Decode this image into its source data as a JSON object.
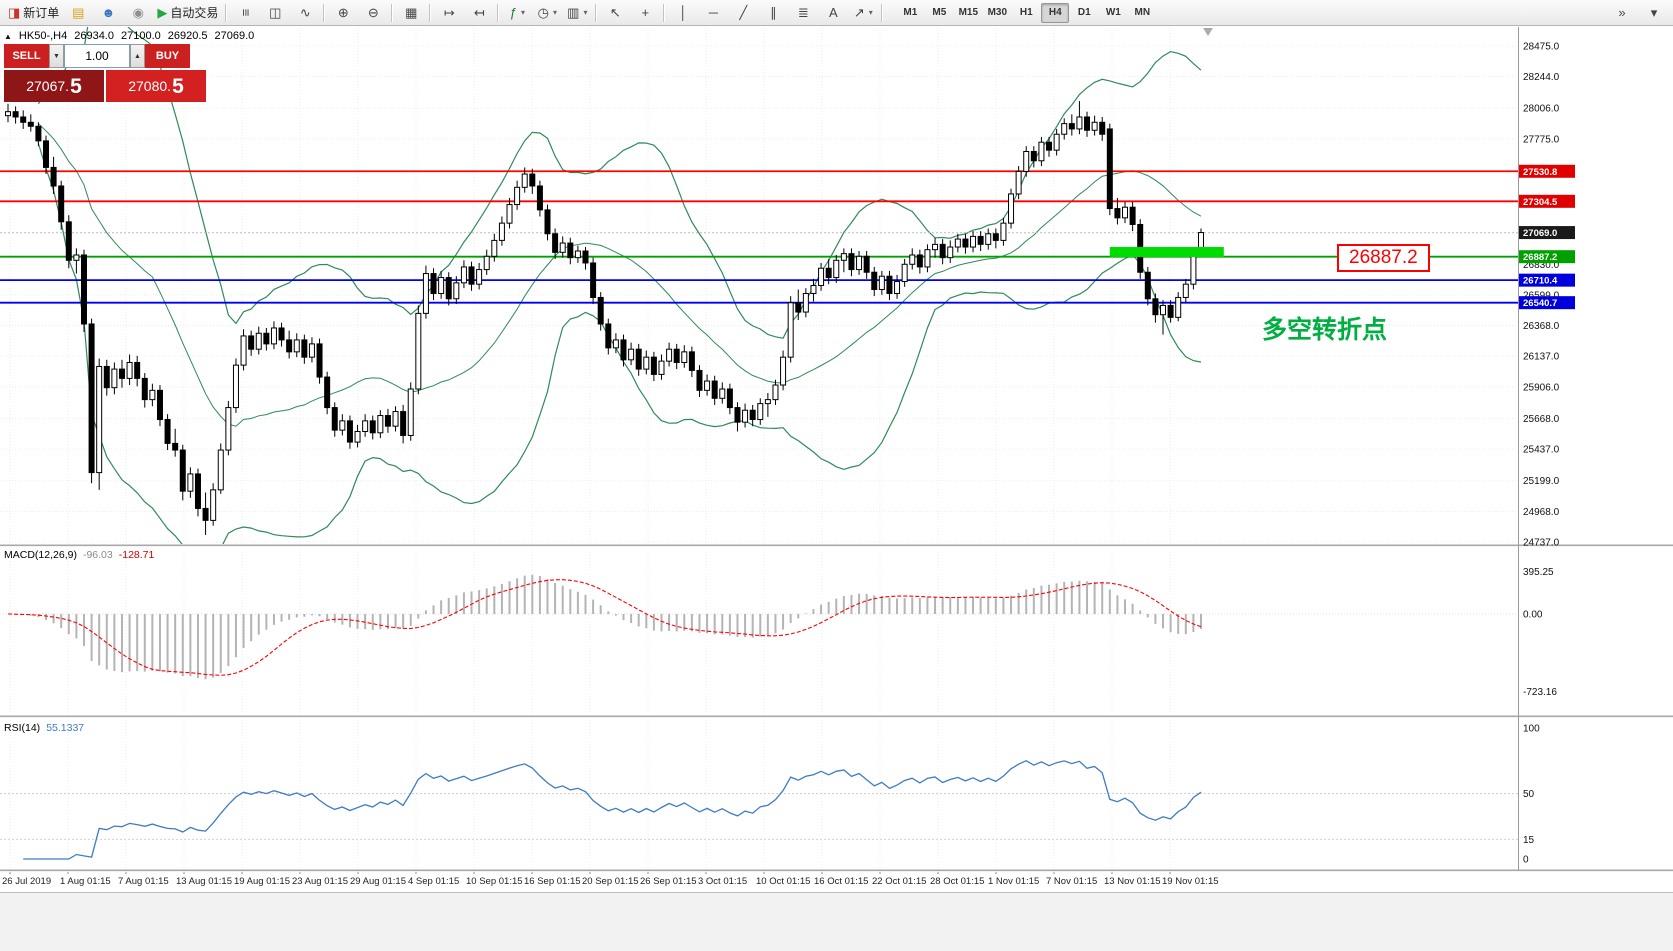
{
  "toolbar": {
    "items": [
      {
        "name": "new-order-button",
        "glyph": "◨",
        "color": "#c0392b",
        "label": "新订单"
      },
      {
        "name": "charts-profile-button",
        "glyph": "▤",
        "color": "#d9a21b"
      },
      {
        "name": "community-button",
        "glyph": "☻",
        "color": "#3b76c4"
      },
      {
        "name": "mql5-button",
        "glyph": "◉",
        "color": "#8f8f8f"
      },
      {
        "name": "autotrading-button",
        "glyph": "▶",
        "color": "#22a842",
        "label": "自动交易"
      },
      {
        "sep": true
      },
      {
        "name": "bars-button",
        "glyph": "≡",
        "rotate": true
      },
      {
        "name": "candles-button",
        "glyph": "◫"
      },
      {
        "name": "line-chart-button",
        "glyph": "∿"
      },
      {
        "sep": true
      },
      {
        "name": "zoom-in-button",
        "glyph": "⊕"
      },
      {
        "name": "zoom-out-button",
        "glyph": "⊖"
      },
      {
        "sep": true
      },
      {
        "name": "tile-windows-button",
        "glyph": "▦"
      },
      {
        "sep": true
      },
      {
        "name": "auto-scroll-button",
        "glyph": "↦"
      },
      {
        "name": "chart-shift-button",
        "glyph": "↤"
      },
      {
        "sep": true
      },
      {
        "name": "indicators-button",
        "glyph": "ƒ",
        "color": "#1a7f37",
        "caret": true
      },
      {
        "name": "periods-button",
        "glyph": "◷",
        "caret": true
      },
      {
        "name": "templates-button",
        "glyph": "▥",
        "caret": true
      },
      {
        "sep": true
      },
      {
        "name": "cursor-button",
        "glyph": "↖"
      },
      {
        "name": "crosshair-button",
        "glyph": "+"
      },
      {
        "sep": true
      },
      {
        "name": "vline-button",
        "glyph": "│"
      },
      {
        "name": "hline-button",
        "glyph": "─"
      },
      {
        "name": "trendline-button",
        "glyph": "╱"
      },
      {
        "name": "channel-button",
        "glyph": "∥"
      },
      {
        "name": "fibonacci-button",
        "glyph": "≣"
      },
      {
        "name": "text-button",
        "glyph": "A"
      },
      {
        "name": "arrows-button",
        "glyph": "↗",
        "caret": true
      },
      {
        "sep": true
      }
    ],
    "timeframes": [
      "M1",
      "M5",
      "M15",
      "M30",
      "H1",
      "H4",
      "D1",
      "W1",
      "MN"
    ],
    "active_timeframe": "H4",
    "right_buttons": [
      {
        "name": "toolbar-overflow-button",
        "glyph": "»"
      },
      {
        "name": "toolbar-options-button",
        "glyph": "▾"
      }
    ]
  },
  "trade_panel": {
    "sell_label": "SELL",
    "buy_label": "BUY",
    "volume": "1.00",
    "spin_down_icon": "▼",
    "spin_up_icon": "▲",
    "sell_price_main": "27067.",
    "sell_price_big": "5",
    "buy_price_main": "27080.",
    "buy_price_big": "5"
  },
  "chart_header": {
    "expand_icon": "▲",
    "symbol_period": "HK50-,H4",
    "open": "26934.0",
    "high": "27100.0",
    "low": "26920.5",
    "close": "27069.0"
  },
  "annotations": {
    "resistance_callout": "26887.2",
    "callout_color": "#FF0000",
    "note_text": "多空转折点",
    "note_color": "#00AE42"
  },
  "price_axis": {
    "plain_labels": [
      "28475.0",
      "28244.0",
      "28006.0",
      "27775.0",
      "26830.0",
      "26599.0",
      "26368.0",
      "26137.0",
      "25906.0",
      "25668.0",
      "25437.0",
      "25199.0",
      "24968.0",
      "24737.0"
    ],
    "tags": [
      {
        "value": 27530.8,
        "text": "27530.8",
        "color": "#E00000"
      },
      {
        "value": 27304.5,
        "text": "27304.5",
        "color": "#E00000"
      },
      {
        "value": 27069.0,
        "text": "27069.0",
        "color": "#1a1a1a"
      },
      {
        "value": 26887.2,
        "text": "26887.2",
        "color": "#00A000"
      },
      {
        "value": 26710.4,
        "text": "26710.4",
        "color": "#0000DD"
      },
      {
        "value": 26540.7,
        "text": "26540.7",
        "color": "#0000DD"
      }
    ]
  },
  "macd_pane": {
    "label": "MACD(12,26,9)",
    "value": "-96.03",
    "signal_value": "-128.71",
    "axis_labels": [
      "395.25",
      "0.00",
      "-723.16"
    ],
    "axis_values": [
      395.25,
      0,
      -723.16
    ]
  },
  "rsi_pane": {
    "label": "RSI(14)",
    "value": "55.1337",
    "axis_labels": [
      "100",
      "50",
      "15",
      "0"
    ],
    "axis_values": [
      100,
      50,
      15,
      0
    ]
  },
  "time_axis": {
    "labels": [
      "26 Jul 2019",
      "1 Aug 01:15",
      "7 Aug 01:15",
      "13 Aug 01:15",
      "19 Aug 01:15",
      "23 Aug 01:15",
      "29 Aug 01:15",
      "4 Sep 01:15",
      "10 Sep 01:15",
      "16 Sep 01:15",
      "20 Sep 01:15",
      "26 Sep 01:15",
      "3 Oct 01:15",
      "10 Oct 01:15",
      "16 Oct 01:15",
      "22 Oct 01:15",
      "28 Oct 01:15",
      "1 Nov 01:15",
      "7 Nov 01:15",
      "13 Nov 01:15",
      "19 Nov 01:15"
    ]
  },
  "chart_data": {
    "type": "candlestick",
    "title": "HK50-,H4",
    "y_range": [
      24737.0,
      28475.0
    ],
    "current_price": 27069.0,
    "bid": 27067.5,
    "ask": 27080.5,
    "horizontal_lines": [
      {
        "price": 27530.8,
        "color": "#FF0000"
      },
      {
        "price": 27304.5,
        "color": "#FF0000"
      },
      {
        "price": 26887.2,
        "color": "#00A000"
      },
      {
        "price": 26710.4,
        "color": "#0000EE"
      },
      {
        "price": 26540.7,
        "color": "#0000EE"
      }
    ],
    "highlight_rect": {
      "bar_start": 145,
      "bar_end": 160,
      "price_top": 26960,
      "price_bottom": 26885,
      "color": "#00DC00"
    },
    "indicators": {
      "bollinger": {
        "period": 20,
        "deviation": 2,
        "color": "#2E8B57"
      },
      "macd": {
        "fast": 12,
        "slow": 26,
        "signal": 9,
        "value": -96.03,
        "signal_value": -128.71,
        "histogram_color": "#b4b4b4",
        "signal_color": "#FF0000",
        "scale_labels": [
          395.25,
          0.0,
          -723.16
        ]
      },
      "rsi": {
        "period": 14,
        "value": 55.1337,
        "color": "#3E7BC4",
        "scale_labels": [
          100,
          50,
          15,
          0
        ]
      }
    },
    "x_labels": [
      "26 Jul 2019",
      "1 Aug 01:15",
      "7 Aug 01:15",
      "13 Aug 01:15",
      "19 Aug 01:15",
      "23 Aug 01:15",
      "29 Aug 01:15",
      "4 Sep 01:15",
      "10 Sep 01:15",
      "16 Sep 01:15",
      "20 Sep 01:15",
      "26 Sep 01:15",
      "3 Oct 01:15",
      "10 Oct 01:15",
      "16 Oct 01:15",
      "22 Oct 01:15",
      "28 Oct 01:15",
      "1 Nov 01:15",
      "7 Nov 01:15",
      "13 Nov 01:15",
      "19 Nov 01:15"
    ],
    "candles_ohlc": [
      [
        27950,
        28040,
        27900,
        27980
      ],
      [
        27980,
        28020,
        27890,
        27940
      ],
      [
        27940,
        27990,
        27850,
        27900
      ],
      [
        27900,
        27960,
        27830,
        27870
      ],
      [
        27870,
        27900,
        27720,
        27760
      ],
      [
        27760,
        27800,
        27510,
        27560
      ],
      [
        27560,
        27640,
        27360,
        27420
      ],
      [
        27420,
        27460,
        27090,
        27150
      ],
      [
        27150,
        27200,
        26800,
        26860
      ],
      [
        26860,
        26950,
        26760,
        26900
      ],
      [
        26900,
        26940,
        26320,
        26380
      ],
      [
        26380,
        26420,
        25180,
        25260
      ],
      [
        25260,
        26120,
        25130,
        26060
      ],
      [
        26060,
        26110,
        25840,
        25900
      ],
      [
        25900,
        26090,
        25850,
        26040
      ],
      [
        26040,
        26110,
        25900,
        25970
      ],
      [
        25970,
        26150,
        25920,
        26090
      ],
      [
        26090,
        26140,
        25910,
        25970
      ],
      [
        25970,
        26010,
        25750,
        25810
      ],
      [
        25810,
        25930,
        25760,
        25880
      ],
      [
        25880,
        25920,
        25610,
        25660
      ],
      [
        25660,
        25700,
        25430,
        25480
      ],
      [
        25480,
        25590,
        25380,
        25430
      ],
      [
        25430,
        25470,
        25050,
        25120
      ],
      [
        25120,
        25300,
        25070,
        25250
      ],
      [
        25250,
        25290,
        24930,
        24990
      ],
      [
        24990,
        25110,
        24790,
        24900
      ],
      [
        24900,
        25180,
        24860,
        25130
      ],
      [
        25130,
        25480,
        25100,
        25430
      ],
      [
        25430,
        25800,
        25390,
        25750
      ],
      [
        25750,
        26120,
        25710,
        26070
      ],
      [
        26070,
        26340,
        26030,
        26290
      ],
      [
        26290,
        26330,
        26140,
        26190
      ],
      [
        26190,
        26360,
        26150,
        26310
      ],
      [
        26310,
        26350,
        26180,
        26230
      ],
      [
        26230,
        26400,
        26190,
        26350
      ],
      [
        26350,
        26390,
        26210,
        26260
      ],
      [
        26260,
        26330,
        26120,
        26170
      ],
      [
        26170,
        26310,
        26130,
        26260
      ],
      [
        26260,
        26300,
        26080,
        26130
      ],
      [
        26130,
        26280,
        26090,
        26230
      ],
      [
        26230,
        26270,
        25930,
        25980
      ],
      [
        25980,
        26020,
        25700,
        25750
      ],
      [
        25750,
        25790,
        25530,
        25580
      ],
      [
        25580,
        25700,
        25540,
        25650
      ],
      [
        25650,
        25690,
        25440,
        25490
      ],
      [
        25490,
        25620,
        25450,
        25570
      ],
      [
        25570,
        25700,
        25530,
        25650
      ],
      [
        25650,
        25690,
        25510,
        25560
      ],
      [
        25560,
        25730,
        25520,
        25690
      ],
      [
        25690,
        25740,
        25560,
        25610
      ],
      [
        25610,
        25760,
        25570,
        25720
      ],
      [
        25720,
        25770,
        25480,
        25540
      ],
      [
        25540,
        25940,
        25500,
        25890
      ],
      [
        25890,
        26520,
        25850,
        26460
      ],
      [
        26460,
        26820,
        26420,
        26760
      ],
      [
        26760,
        26800,
        26560,
        26610
      ],
      [
        26610,
        26780,
        26570,
        26730
      ],
      [
        26730,
        26770,
        26520,
        26570
      ],
      [
        26570,
        26740,
        26530,
        26690
      ],
      [
        26690,
        26860,
        26650,
        26810
      ],
      [
        26810,
        26850,
        26630,
        26680
      ],
      [
        26680,
        26840,
        26640,
        26790
      ],
      [
        26790,
        26940,
        26750,
        26890
      ],
      [
        26890,
        27060,
        26850,
        27010
      ],
      [
        27010,
        27190,
        26970,
        27140
      ],
      [
        27140,
        27330,
        27100,
        27280
      ],
      [
        27280,
        27460,
        27240,
        27410
      ],
      [
        27410,
        27560,
        27370,
        27510
      ],
      [
        27510,
        27550,
        27360,
        27420
      ],
      [
        27420,
        27460,
        27190,
        27240
      ],
      [
        27240,
        27280,
        27010,
        27060
      ],
      [
        27060,
        27100,
        26870,
        26920
      ],
      [
        26920,
        27040,
        26880,
        26990
      ],
      [
        26990,
        27030,
        26830,
        26880
      ],
      [
        26880,
        26970,
        26840,
        26930
      ],
      [
        26930,
        26960,
        26790,
        26840
      ],
      [
        26840,
        26880,
        26530,
        26580
      ],
      [
        26580,
        26620,
        26330,
        26380
      ],
      [
        26380,
        26420,
        26150,
        26200
      ],
      [
        26200,
        26310,
        26160,
        26260
      ],
      [
        26260,
        26300,
        26060,
        26110
      ],
      [
        26110,
        26240,
        26070,
        26190
      ],
      [
        26190,
        26230,
        25990,
        26040
      ],
      [
        26040,
        26180,
        26000,
        26130
      ],
      [
        26130,
        26170,
        25950,
        26000
      ],
      [
        26000,
        26150,
        25960,
        26100
      ],
      [
        26100,
        26240,
        26060,
        26190
      ],
      [
        26190,
        26230,
        26040,
        26090
      ],
      [
        26090,
        26220,
        26050,
        26170
      ],
      [
        26170,
        26210,
        25980,
        26030
      ],
      [
        26030,
        26070,
        25830,
        25880
      ],
      [
        25880,
        26000,
        25840,
        25950
      ],
      [
        25950,
        25990,
        25770,
        25820
      ],
      [
        25820,
        25940,
        25780,
        25890
      ],
      [
        25890,
        25930,
        25700,
        25750
      ],
      [
        25750,
        25790,
        25570,
        25640
      ],
      [
        25640,
        25780,
        25600,
        25730
      ],
      [
        25730,
        25770,
        25610,
        25660
      ],
      [
        25660,
        25820,
        25620,
        25780
      ],
      [
        25780,
        25860,
        25680,
        25810
      ],
      [
        25810,
        25960,
        25770,
        25920
      ],
      [
        25920,
        26180,
        25880,
        26130
      ],
      [
        26130,
        26590,
        26090,
        26540
      ],
      [
        26540,
        26640,
        26410,
        26470
      ],
      [
        26470,
        26650,
        26430,
        26610
      ],
      [
        26610,
        26720,
        26550,
        26670
      ],
      [
        26670,
        26840,
        26630,
        26800
      ],
      [
        26800,
        26870,
        26680,
        26730
      ],
      [
        26730,
        26900,
        26690,
        26860
      ],
      [
        26860,
        26950,
        26770,
        26910
      ],
      [
        26910,
        26950,
        26740,
        26790
      ],
      [
        26790,
        26930,
        26750,
        26890
      ],
      [
        26890,
        26930,
        26720,
        26770
      ],
      [
        26770,
        26810,
        26590,
        26640
      ],
      [
        26640,
        26780,
        26600,
        26740
      ],
      [
        26740,
        26780,
        26560,
        26610
      ],
      [
        26610,
        26750,
        26570,
        26700
      ],
      [
        26700,
        26870,
        26660,
        26830
      ],
      [
        26830,
        26950,
        26790,
        26900
      ],
      [
        26900,
        26940,
        26760,
        26810
      ],
      [
        26810,
        26980,
        26770,
        26940
      ],
      [
        26940,
        27030,
        26880,
        26980
      ],
      [
        26980,
        27020,
        26830,
        26880
      ],
      [
        26880,
        27010,
        26840,
        26960
      ],
      [
        26960,
        27060,
        26920,
        27020
      ],
      [
        27020,
        27060,
        26910,
        26960
      ],
      [
        26960,
        27080,
        26920,
        27040
      ],
      [
        27040,
        27080,
        26930,
        26980
      ],
      [
        26980,
        27100,
        26940,
        27060
      ],
      [
        27060,
        27100,
        26950,
        27010
      ],
      [
        27010,
        27180,
        26970,
        27140
      ],
      [
        27140,
        27400,
        27100,
        27360
      ],
      [
        27360,
        27570,
        27320,
        27530
      ],
      [
        27530,
        27720,
        27490,
        27680
      ],
      [
        27680,
        27720,
        27560,
        27610
      ],
      [
        27610,
        27790,
        27570,
        27750
      ],
      [
        27750,
        27790,
        27640,
        27690
      ],
      [
        27690,
        27850,
        27650,
        27810
      ],
      [
        27810,
        27930,
        27770,
        27890
      ],
      [
        27890,
        27960,
        27800,
        27850
      ],
      [
        27850,
        28060,
        27810,
        27940
      ],
      [
        27940,
        27980,
        27790,
        27840
      ],
      [
        27840,
        27950,
        27800,
        27900
      ],
      [
        27900,
        27940,
        27760,
        27810
      ],
      [
        27850,
        27890,
        27200,
        27250
      ],
      [
        27250,
        27330,
        27130,
        27180
      ],
      [
        27180,
        27300,
        27140,
        27260
      ],
      [
        27260,
        27300,
        27080,
        27130
      ],
      [
        27130,
        27170,
        26720,
        26770
      ],
      [
        26770,
        26810,
        26520,
        26570
      ],
      [
        26570,
        26610,
        26390,
        26450
      ],
      [
        26450,
        26560,
        26300,
        26520
      ],
      [
        26520,
        26560,
        26390,
        26430
      ],
      [
        26430,
        26620,
        26400,
        26580
      ],
      [
        26580,
        26720,
        26540,
        26680
      ],
      [
        26680,
        26960,
        26640,
        26920
      ],
      [
        26934,
        27100,
        26920.5,
        27069
      ]
    ]
  }
}
